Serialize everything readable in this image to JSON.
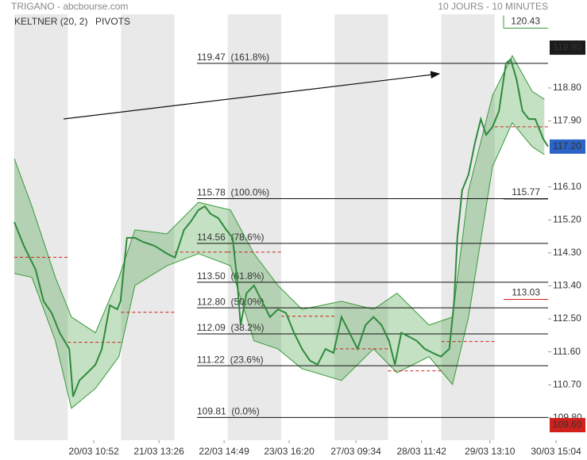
{
  "chart_data": {
    "type": "line",
    "title": "TRIGANO - abcbourse.com",
    "subtitle": "10 JOURS - 10 MINUTES",
    "indicators": [
      {
        "name": "KELTNER (20, 2)",
        "color": "#3a9b3a"
      },
      {
        "name": "PIVOTS",
        "color": "#444444"
      }
    ],
    "xlim": [
      0,
      10
    ],
    "ylim": [
      109.19,
      120.81
    ],
    "xticks": [
      {
        "value": 1.49,
        "label": "20/03 10:52"
      },
      {
        "value": 2.71,
        "label": "21/03 13:26"
      },
      {
        "value": 3.93,
        "label": "22/03 14:49"
      },
      {
        "value": 5.15,
        "label": "23/03 16:20"
      },
      {
        "value": 6.4,
        "label": "27/03 09:34"
      },
      {
        "value": 7.63,
        "label": "28/03 11:42"
      },
      {
        "value": 8.91,
        "label": "29/03 13:10"
      },
      {
        "value": 10.15,
        "label": "30/03 15:04"
      }
    ],
    "yticks": [
      {
        "value": 118.8,
        "label": "118.80"
      },
      {
        "value": 117.9,
        "label": "117.90"
      },
      {
        "value": 116.1,
        "label": "116.10"
      },
      {
        "value": 115.2,
        "label": "115.20"
      },
      {
        "value": 114.3,
        "label": "114.30"
      },
      {
        "value": 113.4,
        "label": "113.40"
      },
      {
        "value": 112.5,
        "label": "112.50"
      },
      {
        "value": 111.6,
        "label": "111.60"
      },
      {
        "value": 110.7,
        "label": "110.70"
      },
      {
        "value": 109.8,
        "label": "109.80"
      }
    ],
    "x": [
      0,
      0.18,
      0.4,
      0.55,
      0.7,
      0.85,
      1.03,
      1.1,
      1.22,
      1.37,
      1.52,
      1.64,
      1.79,
      1.93,
      1.99,
      2.11,
      2.26,
      2.41,
      2.63,
      2.86,
      3.01,
      3.18,
      3.3,
      3.45,
      3.57,
      3.68,
      3.82,
      3.97,
      4.09,
      4.17,
      4.24,
      4.35,
      4.49,
      4.64,
      4.79,
      4.94,
      5.09,
      5.24,
      5.39,
      5.54,
      5.68,
      5.83,
      5.98,
      6.13,
      6.28,
      6.43,
      6.58,
      6.73,
      6.88,
      7.02,
      7.13,
      7.25,
      7.4,
      7.54,
      7.69,
      7.84,
      7.99,
      8.15,
      8.24,
      8.3,
      8.39,
      8.51,
      8.63,
      8.74,
      8.84,
      8.96,
      9.08,
      9.21,
      9.3,
      9.41,
      9.52,
      9.64,
      9.76,
      9.91,
      10.0
    ],
    "series": [
      {
        "color": "#2f8a3c",
        "values": [
          115.14,
          114.49,
          113.84,
          112.98,
          112.66,
          112.12,
          111.68,
          110.38,
          110.82,
          111.03,
          111.25,
          111.68,
          112.87,
          112.76,
          112.98,
          114.71,
          114.71,
          114.6,
          114.49,
          114.28,
          114.17,
          114.93,
          115.14,
          115.47,
          115.57,
          115.36,
          115.25,
          114.93,
          114.71,
          113.63,
          112.33,
          113.2,
          113.41,
          112.98,
          112.55,
          112.76,
          112.66,
          112.12,
          111.68,
          111.36,
          111.25,
          111.68,
          111.57,
          112.55,
          112.12,
          111.68,
          112.33,
          112.55,
          112.33,
          111.9,
          111.25,
          112.12,
          112.01,
          111.9,
          111.68,
          111.57,
          111.47,
          111.68,
          112.98,
          114.71,
          116.01,
          116.44,
          117.3,
          117.95,
          117.52,
          117.74,
          118.17,
          119.47,
          119.58,
          119.03,
          118.17,
          117.95,
          117.95,
          117.41,
          117.2
        ]
      }
    ],
    "keltner": {
      "color": "#3a9b3a",
      "x": [
        0,
        0.33,
        0.77,
        1.07,
        1.52,
        1.96,
        2.26,
        2.86,
        3.45,
        4.05,
        4.49,
        4.94,
        5.39,
        6.13,
        6.73,
        7.17,
        7.77,
        8.21,
        8.51,
        8.96,
        9.33,
        9.7,
        9.93
      ],
      "upper": [
        116.87,
        115.57,
        113.63,
        112.55,
        112.12,
        113.63,
        114.93,
        114.82,
        115.68,
        115.47,
        114.28,
        113.41,
        112.76,
        112.98,
        112.76,
        113.2,
        112.33,
        112.55,
        116.01,
        118.6,
        119.68,
        118.71,
        118.49
      ],
      "lower": [
        113.74,
        113.63,
        111.9,
        110.06,
        110.6,
        111.47,
        113.41,
        113.95,
        114.28,
        113.95,
        111.9,
        111.68,
        111.14,
        110.82,
        111.68,
        111.03,
        111.47,
        110.71,
        112.55,
        116.66,
        117.85,
        117.2,
        116.98
      ]
    },
    "pivots": {
      "color": "#d0201c",
      "values": [
        114.18,
        111.86,
        112.68,
        114.32,
        114.32,
        112.57,
        111.68,
        111.08,
        111.88,
        117.74
      ]
    },
    "fibonacci": [
      {
        "value": 119.47,
        "label": "119.47  (161.8%)"
      },
      {
        "value": 115.78,
        "label": "115.78  (100.0%)"
      },
      {
        "value": 114.56,
        "label": "114.56  (78.6%)"
      },
      {
        "value": 113.5,
        "label": "113.50  (61.8%)"
      },
      {
        "value": 112.8,
        "label": "112.80  (50.0%)"
      },
      {
        "value": 112.09,
        "label": "112.09  (38.2%)"
      },
      {
        "value": 111.22,
        "label": "111.22  (23.6%)"
      },
      {
        "value": 109.81,
        "label": "109.81  (0.0%)"
      }
    ],
    "markers": [
      {
        "value": 120.43,
        "label": "120.43",
        "style": "outline",
        "color": "#3a9b3a"
      },
      {
        "value": 119.9,
        "label": "119.90",
        "style": "filled",
        "color": "#1b1b1b"
      },
      {
        "value": 117.2,
        "label": "117.20",
        "style": "filled",
        "color": "#2b63c6"
      },
      {
        "value": 109.6,
        "label": "109.60",
        "style": "filled",
        "color": "#d0201c"
      },
      {
        "value": 115.77,
        "label": "115.77",
        "style": "text",
        "color": "#111111"
      },
      {
        "value": 113.03,
        "label": "113.03",
        "style": "text",
        "color": "#d0201c"
      }
    ]
  }
}
